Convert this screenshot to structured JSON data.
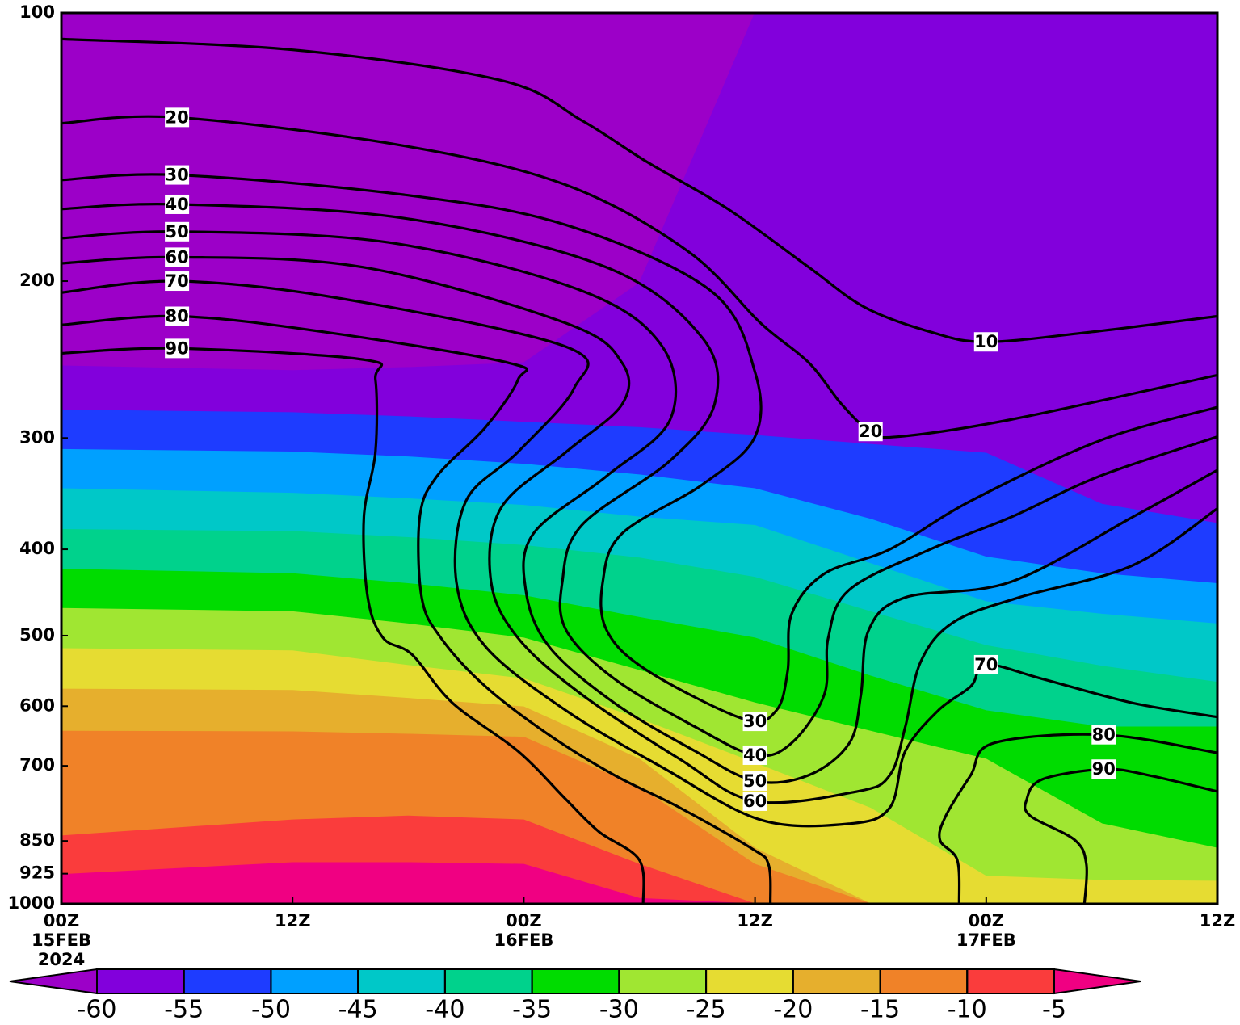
{
  "chart_data": {
    "type": "contour",
    "xlim": [
      0,
      60
    ],
    "xticks": [
      {
        "value": 0,
        "label": "00Z\n15FEB\n2024"
      },
      {
        "value": 12,
        "label": "12Z"
      },
      {
        "value": 24,
        "label": "00Z\n16FEB"
      },
      {
        "value": 36,
        "label": "12Z"
      },
      {
        "value": 48,
        "label": "00Z\n17FEB"
      },
      {
        "value": 60,
        "label": "12Z"
      }
    ],
    "ylim": [
      1000,
      100
    ],
    "yticks": [
      1000,
      925,
      850,
      700,
      600,
      500,
      400,
      300,
      200,
      100
    ],
    "log_y": true,
    "filled": {
      "x": [
        0,
        12,
        18,
        24,
        30,
        36,
        42,
        48,
        54,
        60
      ],
      "boundaries": [
        [
          249,
          252,
          250,
          247,
          201,
          100,
          100,
          100,
          100,
          100
        ],
        [
          279,
          281,
          284,
          288,
          292,
          298,
          305,
          312,
          356,
          374
        ],
        [
          309,
          311,
          315,
          321,
          330,
          342,
          370,
          408,
          426,
          437
        ],
        [
          342,
          346,
          351,
          357,
          368,
          376,
          415,
          458,
          473,
          485
        ],
        [
          380,
          382,
          388,
          396,
          409,
          430,
          470,
          513,
          541,
          564
        ],
        [
          421,
          426,
          437,
          451,
          477,
          503,
          555,
          607,
          633,
          633
        ],
        [
          466,
          470,
          485,
          503,
          547,
          595,
          640,
          688,
          813,
          866
        ],
        [
          517,
          520,
          540,
          559,
          620,
          695,
          781,
          931,
          941,
          943
        ],
        [
          574,
          576,
          588,
          601,
          688,
          866,
          1000,
          1000,
          1000,
          1000
        ],
        [
          640,
          641,
          645,
          650,
          740,
          903,
          1000,
          1000,
          1000,
          1000
        ],
        [
          839,
          805,
          797,
          805,
          903,
          1000,
          1000,
          1000,
          1000,
          1000
        ],
        [
          927,
          899,
          899,
          903,
          986,
          1000,
          1000,
          1000,
          1000,
          1000
        ]
      ]
    },
    "contours": [
      {
        "x": [
          0,
          12,
          22.8,
          27,
          30.4,
          34.6,
          38.8,
          41.7,
          45.1,
          48,
          53.5,
          60
        ],
        "p": [
          107,
          110,
          119,
          132,
          147,
          166,
          193,
          214,
          228,
          234,
          228,
          219
        ]
      },
      {
        "x": [
          0,
          6,
          17.8,
          26.2,
          32.5,
          36.3,
          38.8,
          40.5,
          42,
          43.4,
          49.3,
          60
        ],
        "p": [
          133,
          131,
          141,
          156,
          185,
          223,
          247,
          275,
          295,
          299,
          286,
          255
        ]
      },
      {
        "x": [
          0,
          6,
          17.8,
          26.2,
          33.7,
          36,
          36,
          33.3,
          29.1,
          28.1,
          28.3,
          30.4,
          35.4,
          37.1,
          37.7,
          37.9,
          39.6,
          43,
          47.2,
          53.9,
          60
        ],
        "p": [
          154,
          152,
          160,
          173,
          205,
          253,
          299,
          338,
          384,
          435,
          493,
          547,
          620,
          607,
          547,
          473,
          426,
          400,
          353,
          302,
          277
        ]
      },
      {
        "x": [
          0,
          6,
          17.8,
          28.3,
          33.3,
          33.9,
          31.6,
          27,
          26,
          26.2,
          28.7,
          32.9,
          36,
          37.9,
          39.6,
          39.8,
          40.9,
          45.1,
          49.3,
          53.9,
          60
        ],
        "p": [
          166,
          164,
          170,
          193,
          232,
          275,
          318,
          376,
          435,
          493,
          559,
          633,
          681,
          660,
          582,
          503,
          444,
          400,
          368,
          331,
          299
        ]
      },
      {
        "x": [
          0,
          6,
          17,
          27,
          31.2,
          31.6,
          28.3,
          24.5,
          24.1,
          25.3,
          28.7,
          32.9,
          36,
          38.8,
          40.9,
          41.5,
          41.9,
          43.8,
          49.3,
          55.6,
          60
        ],
        "p": [
          179,
          176,
          181,
          205,
          237,
          286,
          331,
          384,
          444,
          514,
          595,
          674,
          728,
          717,
          660,
          582,
          493,
          453,
          435,
          368,
          326
        ]
      },
      {
        "x": [
          0,
          6,
          15.7,
          26.2,
          29.1,
          29.1,
          26.2,
          22.8,
          22.3,
          23.7,
          27,
          32.1,
          36,
          41.3,
          43,
          43.8,
          44.6,
          46.3,
          49.7,
          55.6,
          60
        ],
        "p": [
          191,
          188,
          193,
          223,
          247,
          275,
          311,
          360,
          435,
          503,
          582,
          688,
          767,
          748,
          717,
          633,
          535,
          483,
          453,
          417,
          360
        ]
      },
      {
        "x": [
          0,
          6,
          14.4,
          26.2,
          26.6,
          23.7,
          21,
          20.5,
          22,
          26.2,
          31.2,
          36.3,
          40.9,
          43,
          43.8,
          45.5,
          47.2,
          48,
          50.9,
          55.6,
          60
        ],
        "p": [
          206,
          200,
          209,
          237,
          264,
          311,
          353,
          435,
          514,
          607,
          703,
          805,
          813,
          780,
          674,
          607,
          570,
          539,
          559,
          595,
          617
        ]
      },
      {
        "x": [
          0,
          6,
          13.6,
          23.2,
          23.7,
          22,
          19.5,
          18.6,
          18.7,
          19.7,
          22,
          25.3,
          28.7,
          32.1,
          35.8,
          36.7,
          36.8
        ],
        "p": [
          224,
          219,
          228,
          247,
          258,
          292,
          331,
          368,
          453,
          503,
          570,
          646,
          717,
          780,
          866,
          903,
          1000
        ]
      },
      {
        "x": [
          0,
          6,
          15.7,
          16.3,
          16.3,
          15.7,
          15.9,
          16.7,
          18.2,
          20.3,
          23.7,
          26.2,
          27.9,
          30,
          30.2
        ],
        "p": [
          241,
          238,
          245,
          258,
          311,
          368,
          453,
          503,
          525,
          595,
          674,
          764,
          830,
          893,
          1000
        ]
      },
      {
        "x": [
          60,
          54.1,
          48.4,
          47.2,
          45.9,
          45.6,
          46.5,
          46.6
        ],
        "p": [
          677,
          646,
          660,
          717,
          797,
          848,
          893,
          1000
        ]
      },
      {
        "x": [
          60,
          56.4,
          54.1,
          50.9,
          50.1,
          50.3,
          52.6,
          53.2,
          53.1
        ],
        "p": [
          748,
          717,
          706,
          725,
          764,
          797,
          848,
          903,
          1000
        ]
      }
    ],
    "contour_labels": [
      {
        "value": 20,
        "x": 6,
        "p": 131
      },
      {
        "value": 30,
        "x": 6,
        "p": 152
      },
      {
        "value": 40,
        "x": 6,
        "p": 164
      },
      {
        "value": 50,
        "x": 6,
        "p": 176
      },
      {
        "value": 60,
        "x": 6,
        "p": 188
      },
      {
        "value": 70,
        "x": 6,
        "p": 200
      },
      {
        "value": 80,
        "x": 6,
        "p": 219
      },
      {
        "value": 90,
        "x": 6,
        "p": 238
      },
      {
        "value": 10,
        "x": 48,
        "p": 234
      },
      {
        "value": 20,
        "x": 42,
        "p": 295
      },
      {
        "value": 30,
        "x": 36,
        "p": 624
      },
      {
        "value": 40,
        "x": 36,
        "p": 681
      },
      {
        "value": 50,
        "x": 36,
        "p": 728
      },
      {
        "value": 60,
        "x": 36,
        "p": 767
      },
      {
        "value": 70,
        "x": 48,
        "p": 539
      },
      {
        "value": 80,
        "x": 54.1,
        "p": 646
      },
      {
        "value": 90,
        "x": 54.1,
        "p": 706
      }
    ],
    "line_color": "#000000",
    "colorbar": {
      "levels": [
        -60,
        -55,
        -50,
        -45,
        -40,
        -35,
        -30,
        -25,
        -20,
        -15,
        -10,
        -5
      ],
      "colors": [
        "#9c00c8",
        "#8200dc",
        "#1e3cff",
        "#00a0ff",
        "#00c8c8",
        "#00d28c",
        "#00dc00",
        "#a0e632",
        "#e6dc32",
        "#e6af2d",
        "#f08228",
        "#fa3c3c",
        "#f00082"
      ]
    }
  }
}
